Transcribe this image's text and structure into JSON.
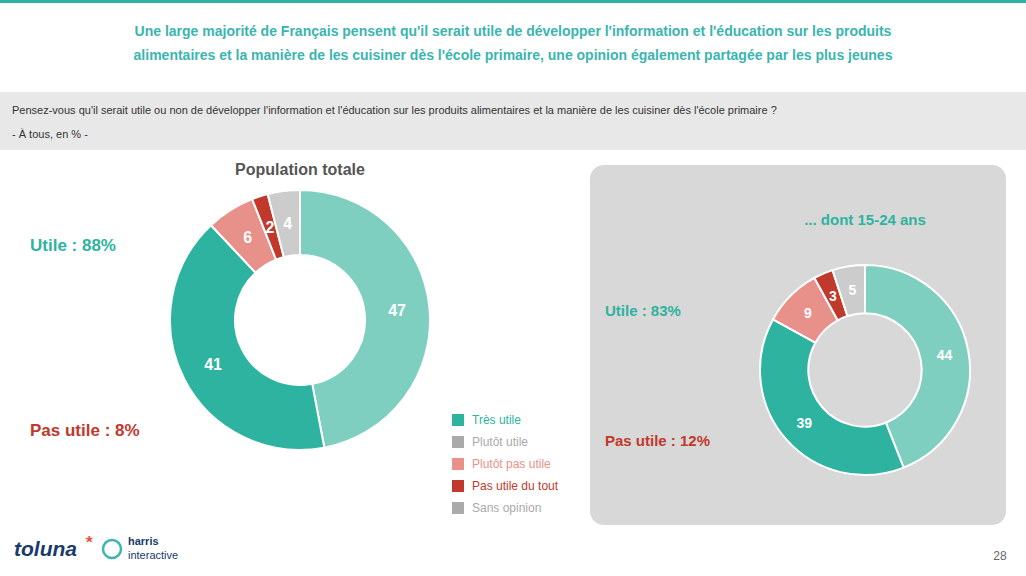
{
  "title": [
    "Une large majorité de Français pensent qu'il serait utile de développer l'information et l'éducation sur les produits",
    "alimentaires et la manière de les cuisiner dès l'école primaire, une opinion également partagée par les plus jeunes"
  ],
  "subtitle": [
    "Pensez-vous qu'il serait utile ou non de développer l'information et l'éducation sur les produits alimentaires et la manière de les cuisiner dès l'école primaire ?",
    "- À tous, en % -"
  ],
  "chart_data": [
    {
      "type": "pie",
      "title": "Population totale",
      "values": [
        47,
        41,
        6,
        2,
        4
      ],
      "colors": [
        "#7ecfc0",
        "#2db3a0",
        "#e8918a",
        "#c0392b",
        "#cccccc"
      ],
      "data_labels": true,
      "annotations": [
        {
          "text": "Utile : 88%",
          "color": "#2db3a0"
        },
        {
          "text": "Pas utile : 8%",
          "color": "#c0392b"
        }
      ]
    },
    {
      "type": "pie",
      "title": "... dont 15-24 ans",
      "values": [
        44,
        39,
        9,
        3,
        5
      ],
      "colors": [
        "#7ecfc0",
        "#2db3a0",
        "#e8918a",
        "#c0392b",
        "#cccccc"
      ],
      "data_labels": true,
      "annotations": [
        {
          "text": "Utile : 83%",
          "color": "#2db3a0"
        },
        {
          "text": "Pas utile : 12%",
          "color": "#c0392b"
        }
      ]
    }
  ],
  "legend_items": [
    {
      "label": "Très utile",
      "color": "#2db3a0"
    },
    {
      "label": "Plutôt utile",
      "color": "#aaaaaa"
    },
    {
      "label": "Plutôt pas utile",
      "color": "#e8918a"
    },
    {
      "label": "Pas utile du tout",
      "color": "#c0392b"
    },
    {
      "label": "Sans opinion",
      "color": "#aaaaaa"
    }
  ],
  "annotations": [
    {
      "text": "toluna",
      "color": "#1a3a6b"
    },
    {
      "text": "*",
      "color": "#e74c3c"
    },
    {
      "text": "harris",
      "color": "#1a3a6b"
    },
    {
      "text": "interactive",
      "color": "#1a3a6b"
    },
    {
      "text": "28",
      "color": "#666666"
    }
  ]
}
